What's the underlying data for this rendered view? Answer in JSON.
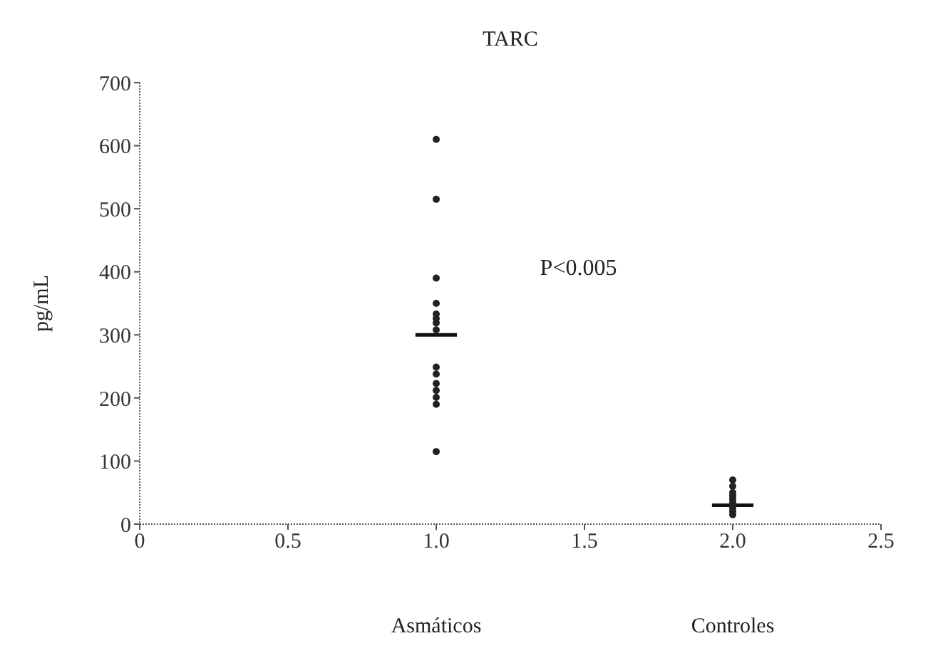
{
  "chart_data": {
    "type": "scatter",
    "title": "TARC",
    "ylabel": "pg/mL",
    "xlim": [
      0,
      2.5
    ],
    "xticks": [
      {
        "value": 0,
        "label": "0"
      },
      {
        "value": 0.5,
        "label": "0.5"
      },
      {
        "value": 1,
        "label": "1.0"
      },
      {
        "value": 1.5,
        "label": "1.5"
      },
      {
        "value": 2,
        "label": "2.0"
      },
      {
        "value": 2.5,
        "label": "2.5"
      }
    ],
    "ylim": [
      0,
      700
    ],
    "yticks": [
      0,
      100,
      200,
      300,
      400,
      500,
      600,
      700
    ],
    "grid": false,
    "legend": false,
    "series": [
      {
        "marker": "circle",
        "color": "#222222",
        "x": [
          1,
          1,
          1,
          1,
          1,
          1,
          1,
          1,
          1,
          1,
          1,
          1,
          1,
          1,
          1
        ],
        "values": [
          610,
          515,
          390,
          350,
          333,
          326,
          319,
          308,
          249,
          238,
          223,
          212,
          201,
          190,
          115
        ]
      },
      {
        "marker": "circle",
        "color": "#222222",
        "x": [
          2,
          2,
          2,
          2,
          2,
          2,
          2,
          2,
          2,
          2
        ],
        "values": [
          70,
          60,
          50,
          45,
          40,
          35,
          30,
          25,
          20,
          15
        ]
      },
      {
        "type": "line",
        "marker": "none",
        "color": "#111111",
        "x": [
          0.93,
          1.07
        ],
        "values": [
          300,
          300
        ]
      },
      {
        "type": "line",
        "marker": "none",
        "color": "#111111",
        "x": [
          1.93,
          2.07
        ],
        "values": [
          30,
          30
        ]
      }
    ],
    "annotations": [
      "P<0.005",
      "Asmáticos",
      "Controles"
    ]
  }
}
